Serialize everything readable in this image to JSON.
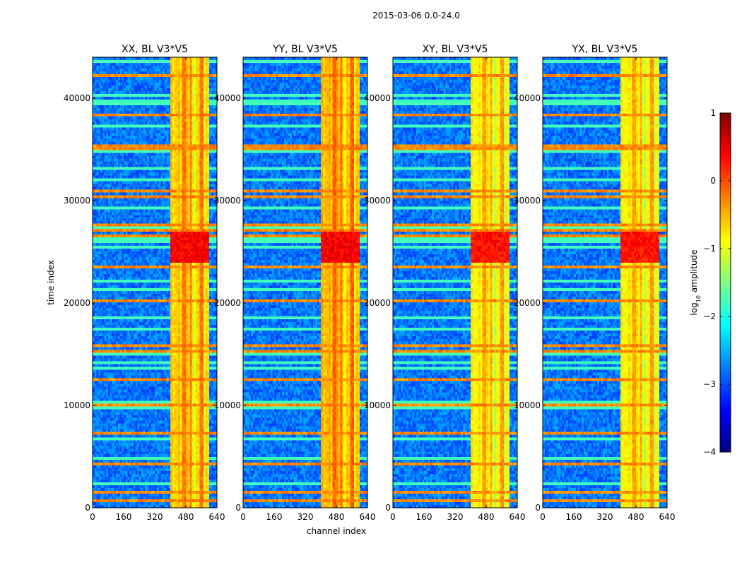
{
  "figure": {
    "suptitle": "2015-03-06 0.0-24.0",
    "xlabel": "channel index",
    "ylabel": "time index"
  },
  "colorbar": {
    "label_text": "amplitude",
    "label_prefix": "log",
    "label_subscript": "10",
    "range": [
      -4,
      1
    ],
    "ticks": [
      1,
      0,
      -1,
      -2,
      -3,
      -4
    ],
    "tick_labels": [
      "1",
      "0",
      "−1",
      "−2",
      "−3",
      "−4"
    ],
    "colormap": "jet",
    "colormap_stops": [
      "#00007f",
      "#0000ff",
      "#007fff",
      "#00ffff",
      "#7fff7f",
      "#ffff00",
      "#ff7f00",
      "#ff0000",
      "#7f0000"
    ]
  },
  "chart_data": [
    {
      "type": "heatmap",
      "title": "XX, BL V3*V5",
      "xlabel": "channel index",
      "ylabel": "time index",
      "xlim": [
        0,
        640
      ],
      "ylim": [
        0,
        44000
      ],
      "xticks": [
        0,
        160,
        320,
        480,
        640
      ],
      "yticks": [
        0,
        10000,
        20000,
        30000,
        40000
      ],
      "z_range": [
        -4,
        1
      ],
      "z_label": "log10 amplitude",
      "background_level": -2.8,
      "bright_channel_band": [
        400,
        600
      ],
      "band_level": -0.6,
      "peak_time_range": [
        24000,
        27000
      ],
      "peak_level": 0.4
    },
    {
      "type": "heatmap",
      "title": "YY, BL V3*V5",
      "xlabel": "channel index",
      "ylabel": "time index",
      "xlim": [
        0,
        640
      ],
      "ylim": [
        0,
        44000
      ],
      "xticks": [
        0,
        160,
        320,
        480,
        640
      ],
      "yticks": [
        0,
        10000,
        20000,
        30000,
        40000
      ],
      "z_range": [
        -4,
        1
      ],
      "z_label": "log10 amplitude",
      "background_level": -2.8,
      "bright_channel_band": [
        400,
        600
      ],
      "band_level": -0.5,
      "peak_time_range": [
        24000,
        27000
      ],
      "peak_level": 0.4
    },
    {
      "type": "heatmap",
      "title": "XY, BL V3*V5",
      "xlabel": "channel index",
      "ylabel": "time index",
      "xlim": [
        0,
        640
      ],
      "ylim": [
        0,
        44000
      ],
      "xticks": [
        0,
        160,
        320,
        480,
        640
      ],
      "yticks": [
        0,
        10000,
        20000,
        30000,
        40000
      ],
      "z_range": [
        -4,
        1
      ],
      "z_label": "log10 amplitude",
      "background_level": -2.8,
      "bright_channel_band": [
        400,
        600
      ],
      "band_level": -0.8,
      "peak_time_range": [
        24000,
        27000
      ],
      "peak_level": 0.3
    },
    {
      "type": "heatmap",
      "title": "YX, BL V3*V5",
      "xlabel": "channel index",
      "ylabel": "time index",
      "xlim": [
        0,
        640
      ],
      "ylim": [
        0,
        44000
      ],
      "xticks": [
        0,
        160,
        320,
        480,
        640
      ],
      "yticks": [
        0,
        10000,
        20000,
        30000,
        40000
      ],
      "z_range": [
        -4,
        1
      ],
      "z_label": "log10 amplitude",
      "background_level": -2.8,
      "bright_channel_band": [
        400,
        600
      ],
      "band_level": -0.8,
      "peak_time_range": [
        24000,
        27000
      ],
      "peak_level": 0.3
    }
  ]
}
